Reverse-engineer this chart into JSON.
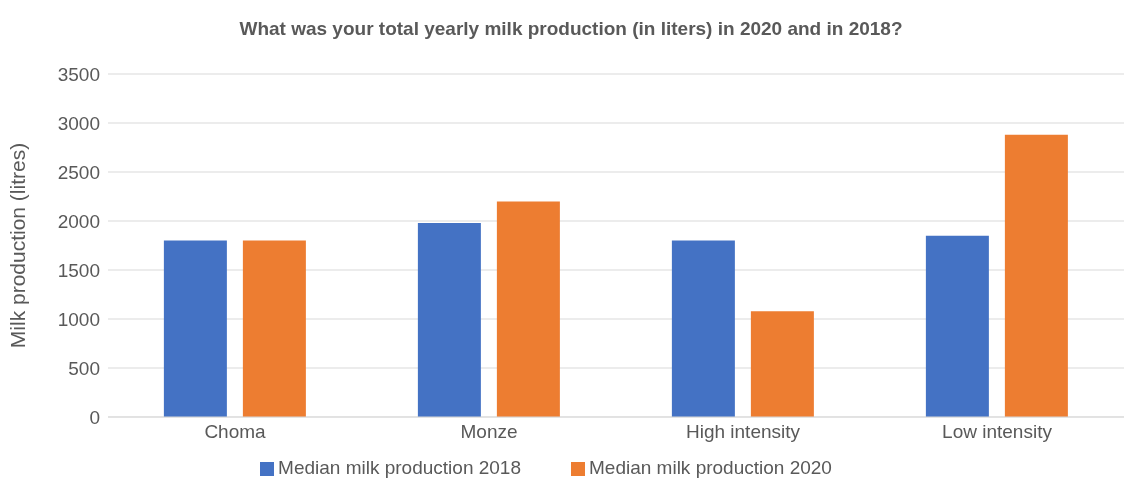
{
  "chart_data": {
    "type": "bar",
    "title": "What was your total yearly milk production (in liters) in 2020 and in 2018?",
    "ylabel": "Milk production (litres)",
    "categories": [
      "Choma",
      "Monze",
      "High intensity",
      "Low intensity"
    ],
    "series": [
      {
        "name": "Median milk production 2018",
        "color": "#4472c4",
        "values": [
          1800,
          1980,
          1800,
          1850
        ]
      },
      {
        "name": "Median milk production 2020",
        "color": "#ed7d31",
        "values": [
          1800,
          2200,
          1080,
          2880
        ]
      }
    ],
    "ylim": [
      0,
      3500
    ],
    "yticks": [
      0,
      500,
      1000,
      1500,
      2000,
      2500,
      3000,
      3500
    ],
    "grid": "y",
    "legend": "bottom"
  }
}
